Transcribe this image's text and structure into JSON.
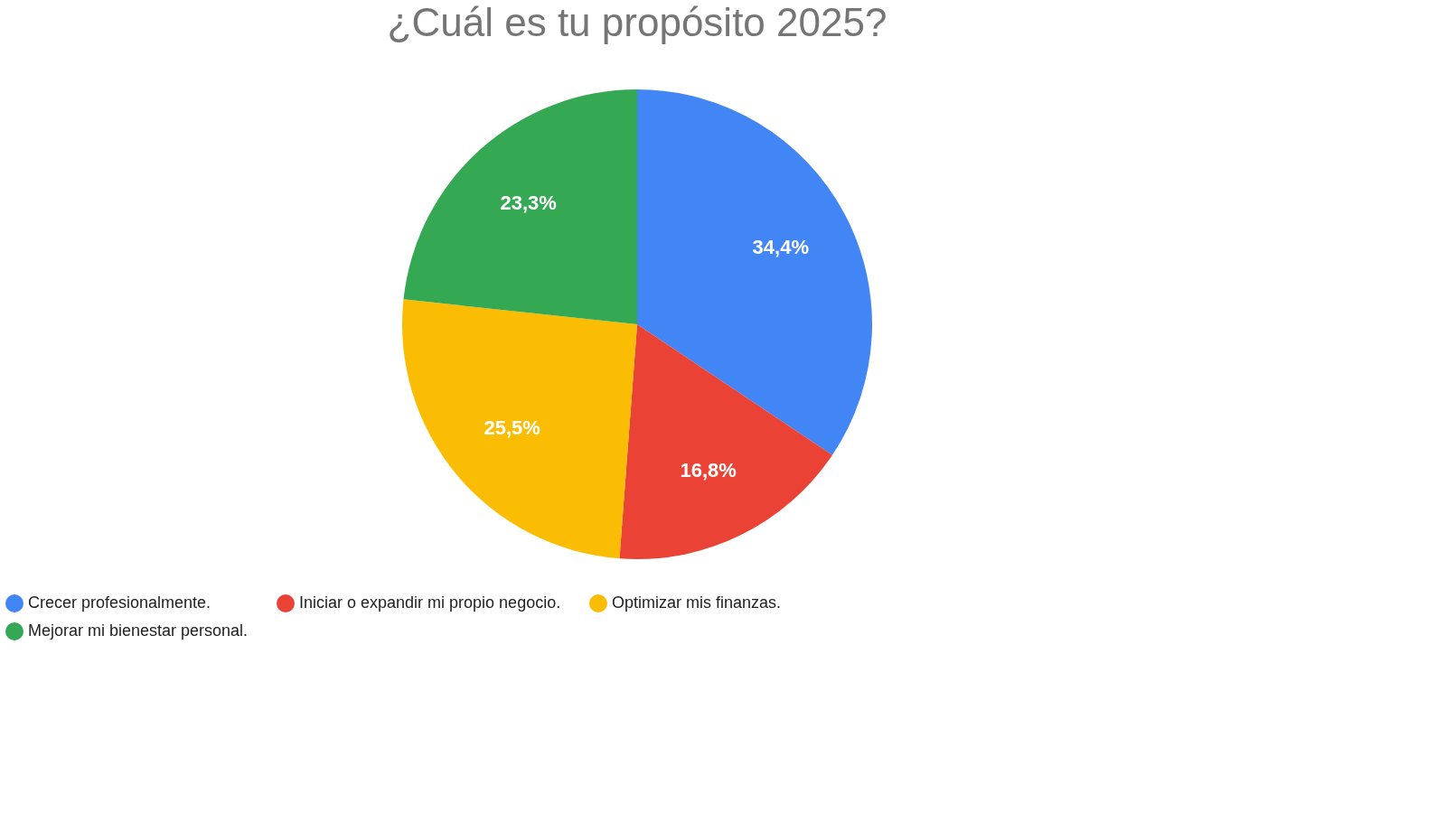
{
  "chart_data": {
    "type": "pie",
    "title": "¿Cuál es tu propósito 2025?",
    "categories": [
      "Crecer profesionalmente.",
      "Iniciar o expandir mi propio negocio.",
      "Optimizar mis finanzas.",
      "Mejorar mi bienestar personal."
    ],
    "values": [
      34.4,
      16.8,
      25.5,
      23.3
    ],
    "colors": [
      "#4285f4",
      "#ea4335",
      "#fbbc04",
      "#34a853"
    ],
    "value_labels": [
      "34,4%",
      "16,8%",
      "25,5%",
      "23,3%"
    ],
    "legend": "bottom"
  }
}
